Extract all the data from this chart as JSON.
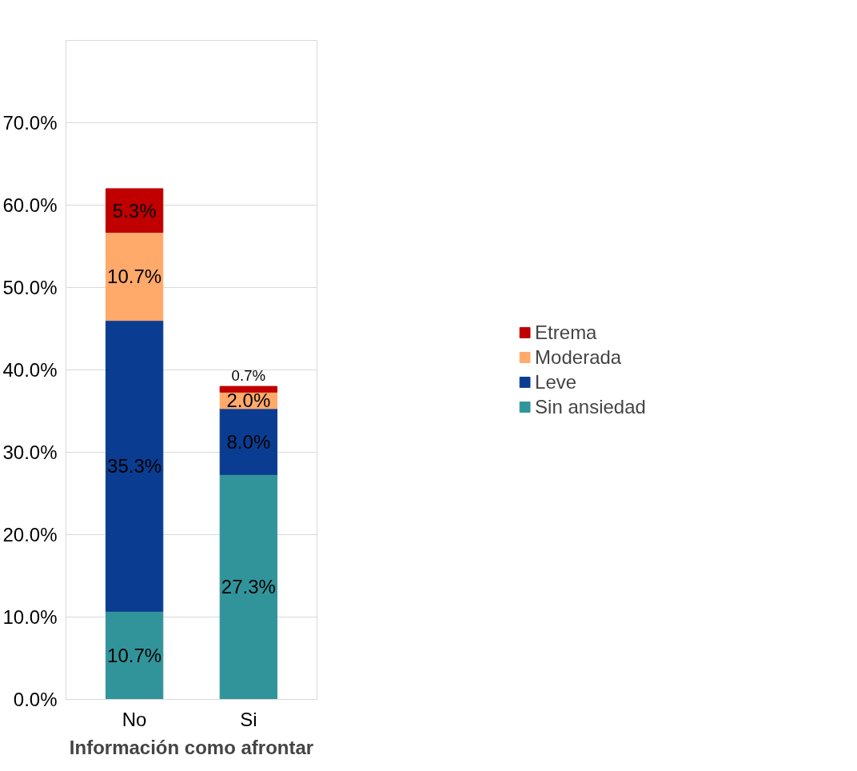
{
  "chart_data": {
    "type": "bar",
    "stacked": true,
    "xlabel": "Información como afrontar",
    "categories": [
      "No",
      "Si"
    ],
    "series": [
      {
        "name": "Sin ansiedad",
        "color": "#31949a",
        "values": [
          10.7,
          27.3
        ],
        "value_labels": [
          "10.7%",
          "27.3%"
        ]
      },
      {
        "name": "Leve",
        "color": "#0a3d91",
        "values": [
          35.3,
          8.0
        ],
        "value_labels": [
          "35.3%",
          "8.0%"
        ]
      },
      {
        "name": "Moderada",
        "color": "#ffa96b",
        "values": [
          10.7,
          2.0
        ],
        "value_labels": [
          "10.7%",
          "2.0%"
        ]
      },
      {
        "name": "Etrema",
        "color": "#c00000",
        "values": [
          5.3,
          0.7
        ],
        "value_labels": [
          "5.3%",
          "0.7%"
        ]
      }
    ],
    "ylim": [
      0,
      80
    ],
    "yticks": [
      {
        "value": 0,
        "label": "0.0%"
      },
      {
        "value": 10,
        "label": "10.0%"
      },
      {
        "value": 20,
        "label": "20.0%"
      },
      {
        "value": 30,
        "label": "30.0%"
      },
      {
        "value": 40,
        "label": "40.0%"
      },
      {
        "value": 50,
        "label": "50.0%"
      },
      {
        "value": 60,
        "label": "60.0%"
      },
      {
        "value": 70,
        "label": "70.0%"
      }
    ],
    "grid": "y",
    "legend": "right"
  }
}
